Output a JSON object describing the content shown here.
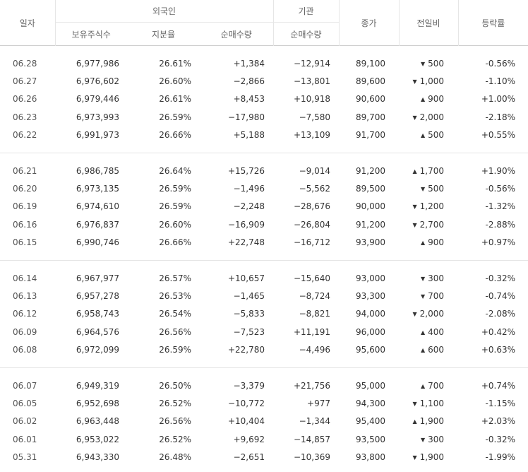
{
  "header": {
    "date": "일자",
    "foreign": "외국인",
    "institution": "기관",
    "close": "종가",
    "change": "전일비",
    "rate": "등락률",
    "holdings": "보유주식수",
    "ratio": "지분율",
    "foreign_net": "순매수량",
    "inst_net": "순매수량"
  },
  "colors": {
    "up": "#e8271b",
    "down": "#2857c5"
  },
  "groups": [
    [
      {
        "date": "06.28",
        "holdings": "6,977,986",
        "ratio": "26.61%",
        "foreign_net": "+1,384",
        "foreign_dir": "up",
        "inst_net": "−12,914",
        "inst_dir": "down",
        "close": "89,100",
        "close_dir": "down",
        "change": "500",
        "change_dir": "down",
        "rate": "-0.56%",
        "rate_dir": "down"
      },
      {
        "date": "06.27",
        "holdings": "6,976,602",
        "ratio": "26.60%",
        "foreign_net": "−2,866",
        "foreign_dir": "down",
        "inst_net": "−13,801",
        "inst_dir": "down",
        "close": "89,600",
        "close_dir": "down",
        "change": "1,000",
        "change_dir": "down",
        "rate": "-1.10%",
        "rate_dir": "down"
      },
      {
        "date": "06.26",
        "holdings": "6,979,446",
        "ratio": "26.61%",
        "foreign_net": "+8,453",
        "foreign_dir": "up",
        "inst_net": "+10,918",
        "inst_dir": "up",
        "close": "90,600",
        "close_dir": "up",
        "change": "900",
        "change_dir": "up",
        "rate": "+1.00%",
        "rate_dir": "up"
      },
      {
        "date": "06.23",
        "holdings": "6,973,993",
        "ratio": "26.59%",
        "foreign_net": "−17,980",
        "foreign_dir": "down",
        "inst_net": "−7,580",
        "inst_dir": "down",
        "close": "89,700",
        "close_dir": "down",
        "change": "2,000",
        "change_dir": "down",
        "rate": "-2.18%",
        "rate_dir": "down"
      },
      {
        "date": "06.22",
        "holdings": "6,991,973",
        "ratio": "26.66%",
        "foreign_net": "+5,188",
        "foreign_dir": "up",
        "inst_net": "+13,109",
        "inst_dir": "up",
        "close": "91,700",
        "close_dir": "up",
        "change": "500",
        "change_dir": "up",
        "rate": "+0.55%",
        "rate_dir": "up"
      }
    ],
    [
      {
        "date": "06.21",
        "holdings": "6,986,785",
        "ratio": "26.64%",
        "foreign_net": "+15,726",
        "foreign_dir": "up",
        "inst_net": "−9,014",
        "inst_dir": "down",
        "close": "91,200",
        "close_dir": "up",
        "change": "1,700",
        "change_dir": "up",
        "rate": "+1.90%",
        "rate_dir": "up"
      },
      {
        "date": "06.20",
        "holdings": "6,973,135",
        "ratio": "26.59%",
        "foreign_net": "−1,496",
        "foreign_dir": "down",
        "inst_net": "−5,562",
        "inst_dir": "down",
        "close": "89,500",
        "close_dir": "down",
        "change": "500",
        "change_dir": "down",
        "rate": "-0.56%",
        "rate_dir": "down"
      },
      {
        "date": "06.19",
        "holdings": "6,974,610",
        "ratio": "26.59%",
        "foreign_net": "−2,248",
        "foreign_dir": "down",
        "inst_net": "−28,676",
        "inst_dir": "down",
        "close": "90,000",
        "close_dir": "down",
        "change": "1,200",
        "change_dir": "down",
        "rate": "-1.32%",
        "rate_dir": "down"
      },
      {
        "date": "06.16",
        "holdings": "6,976,837",
        "ratio": "26.60%",
        "foreign_net": "−16,909",
        "foreign_dir": "down",
        "inst_net": "−26,804",
        "inst_dir": "down",
        "close": "91,200",
        "close_dir": "down",
        "change": "2,700",
        "change_dir": "down",
        "rate": "-2.88%",
        "rate_dir": "down"
      },
      {
        "date": "06.15",
        "holdings": "6,990,746",
        "ratio": "26.66%",
        "foreign_net": "+22,748",
        "foreign_dir": "up",
        "inst_net": "−16,712",
        "inst_dir": "down",
        "close": "93,900",
        "close_dir": "up",
        "change": "900",
        "change_dir": "up",
        "rate": "+0.97%",
        "rate_dir": "up"
      }
    ],
    [
      {
        "date": "06.14",
        "holdings": "6,967,977",
        "ratio": "26.57%",
        "foreign_net": "+10,657",
        "foreign_dir": "up",
        "inst_net": "−15,640",
        "inst_dir": "down",
        "close": "93,000",
        "close_dir": "down",
        "change": "300",
        "change_dir": "down",
        "rate": "-0.32%",
        "rate_dir": "down"
      },
      {
        "date": "06.13",
        "holdings": "6,957,278",
        "ratio": "26.53%",
        "foreign_net": "−1,465",
        "foreign_dir": "down",
        "inst_net": "−8,724",
        "inst_dir": "down",
        "close": "93,300",
        "close_dir": "down",
        "change": "700",
        "change_dir": "down",
        "rate": "-0.74%",
        "rate_dir": "down"
      },
      {
        "date": "06.12",
        "holdings": "6,958,743",
        "ratio": "26.54%",
        "foreign_net": "−5,833",
        "foreign_dir": "down",
        "inst_net": "−8,821",
        "inst_dir": "down",
        "close": "94,000",
        "close_dir": "down",
        "change": "2,000",
        "change_dir": "down",
        "rate": "-2.08%",
        "rate_dir": "down"
      },
      {
        "date": "06.09",
        "holdings": "6,964,576",
        "ratio": "26.56%",
        "foreign_net": "−7,523",
        "foreign_dir": "down",
        "inst_net": "+11,191",
        "inst_dir": "up",
        "close": "96,000",
        "close_dir": "up",
        "change": "400",
        "change_dir": "up",
        "rate": "+0.42%",
        "rate_dir": "up"
      },
      {
        "date": "06.08",
        "holdings": "6,972,099",
        "ratio": "26.59%",
        "foreign_net": "+22,780",
        "foreign_dir": "up",
        "inst_net": "−4,496",
        "inst_dir": "down",
        "close": "95,600",
        "close_dir": "up",
        "change": "600",
        "change_dir": "up",
        "rate": "+0.63%",
        "rate_dir": "up"
      }
    ],
    [
      {
        "date": "06.07",
        "holdings": "6,949,319",
        "ratio": "26.50%",
        "foreign_net": "−3,379",
        "foreign_dir": "down",
        "inst_net": "+21,756",
        "inst_dir": "up",
        "close": "95,000",
        "close_dir": "up",
        "change": "700",
        "change_dir": "up",
        "rate": "+0.74%",
        "rate_dir": "up"
      },
      {
        "date": "06.05",
        "holdings": "6,952,698",
        "ratio": "26.52%",
        "foreign_net": "−10,772",
        "foreign_dir": "down",
        "inst_net": "+977",
        "inst_dir": "up",
        "close": "94,300",
        "close_dir": "down",
        "change": "1,100",
        "change_dir": "down",
        "rate": "-1.15%",
        "rate_dir": "down"
      },
      {
        "date": "06.02",
        "holdings": "6,963,448",
        "ratio": "26.56%",
        "foreign_net": "+10,404",
        "foreign_dir": "up",
        "inst_net": "−1,344",
        "inst_dir": "down",
        "close": "95,400",
        "close_dir": "up",
        "change": "1,900",
        "change_dir": "up",
        "rate": "+2.03%",
        "rate_dir": "up"
      },
      {
        "date": "06.01",
        "holdings": "6,953,022",
        "ratio": "26.52%",
        "foreign_net": "+9,692",
        "foreign_dir": "up",
        "inst_net": "−14,857",
        "inst_dir": "down",
        "close": "93,500",
        "close_dir": "down",
        "change": "300",
        "change_dir": "down",
        "rate": "-0.32%",
        "rate_dir": "down"
      },
      {
        "date": "05.31",
        "holdings": "6,943,330",
        "ratio": "26.48%",
        "foreign_net": "−2,651",
        "foreign_dir": "down",
        "inst_net": "−10,369",
        "inst_dir": "down",
        "close": "93,800",
        "close_dir": "down",
        "change": "1,900",
        "change_dir": "down",
        "rate": "-1.99%",
        "rate_dir": "down"
      }
    ]
  ]
}
